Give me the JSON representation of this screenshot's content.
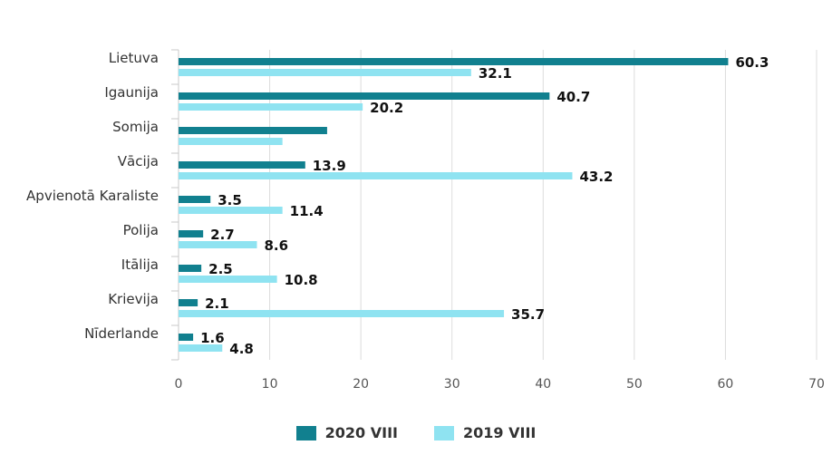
{
  "chart_data": {
    "type": "bar",
    "orientation": "horizontal",
    "categories": [
      "Lietuva",
      "Igaunija",
      "Somija",
      "Vācija",
      "Apvienotā Karaliste",
      "Polija",
      "Itālija",
      "Krievija",
      "Nīderlande"
    ],
    "series": [
      {
        "name": "2020 VIII",
        "color": "#11808f",
        "values": [
          60.3,
          40.7,
          16.3,
          13.9,
          3.5,
          2.7,
          2.5,
          2.1,
          1.6
        ],
        "labels": [
          "60.3",
          "40.7",
          "",
          "13.9",
          "3.5",
          "2.7",
          "2.5",
          "2.1",
          "1.6"
        ]
      },
      {
        "name": "2019 VIII",
        "color": "#8fe3f1",
        "values": [
          32.1,
          20.2,
          11.4,
          43.2,
          11.4,
          8.6,
          10.8,
          35.7,
          4.8
        ],
        "labels": [
          "32.1",
          "20.2",
          "",
          "43.2",
          "11.4",
          "8.6",
          "10.8",
          "35.7",
          "4.8"
        ]
      }
    ],
    "xlim": [
      0,
      70
    ],
    "xticks": [
      "0",
      "10",
      "20",
      "30",
      "40",
      "50",
      "60",
      "70"
    ],
    "grid": true,
    "legend_position": "bottom"
  }
}
